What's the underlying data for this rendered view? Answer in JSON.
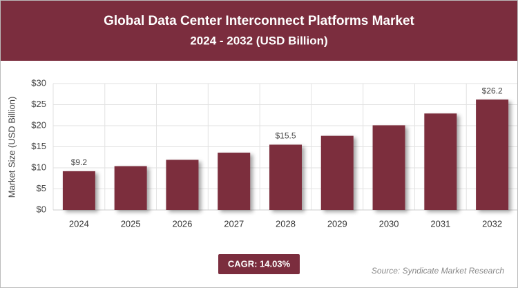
{
  "chart_data": {
    "type": "bar",
    "title": "Global Data Center Interconnect Platforms Market",
    "subtitle": "2024 - 2032 (USD Billion)",
    "y_label": "Market Size (USD Billion)",
    "categories": [
      "2024",
      "2025",
      "2026",
      "2027",
      "2028",
      "2029",
      "2030",
      "2031",
      "2032"
    ],
    "values": [
      9.2,
      10.4,
      11.9,
      13.6,
      15.5,
      17.6,
      20.1,
      22.9,
      26.2
    ],
    "value_labels": [
      "$9.2",
      null,
      null,
      null,
      "$15.5",
      null,
      null,
      null,
      "$26.2"
    ],
    "color": "#7b2d3e",
    "ylim": [
      0,
      30
    ],
    "yticks": [
      {
        "value": 0,
        "label": "$0"
      },
      {
        "value": 5,
        "label": "$5"
      },
      {
        "value": 10,
        "label": "$10"
      },
      {
        "value": 15,
        "label": "$15"
      },
      {
        "value": 20,
        "label": "$20"
      },
      {
        "value": 25,
        "label": "$25"
      },
      {
        "value": 30,
        "label": "$30"
      }
    ],
    "grid": true,
    "annotation": "CAGR: 14.03%",
    "source": "Source: Syndicate Market Research"
  }
}
